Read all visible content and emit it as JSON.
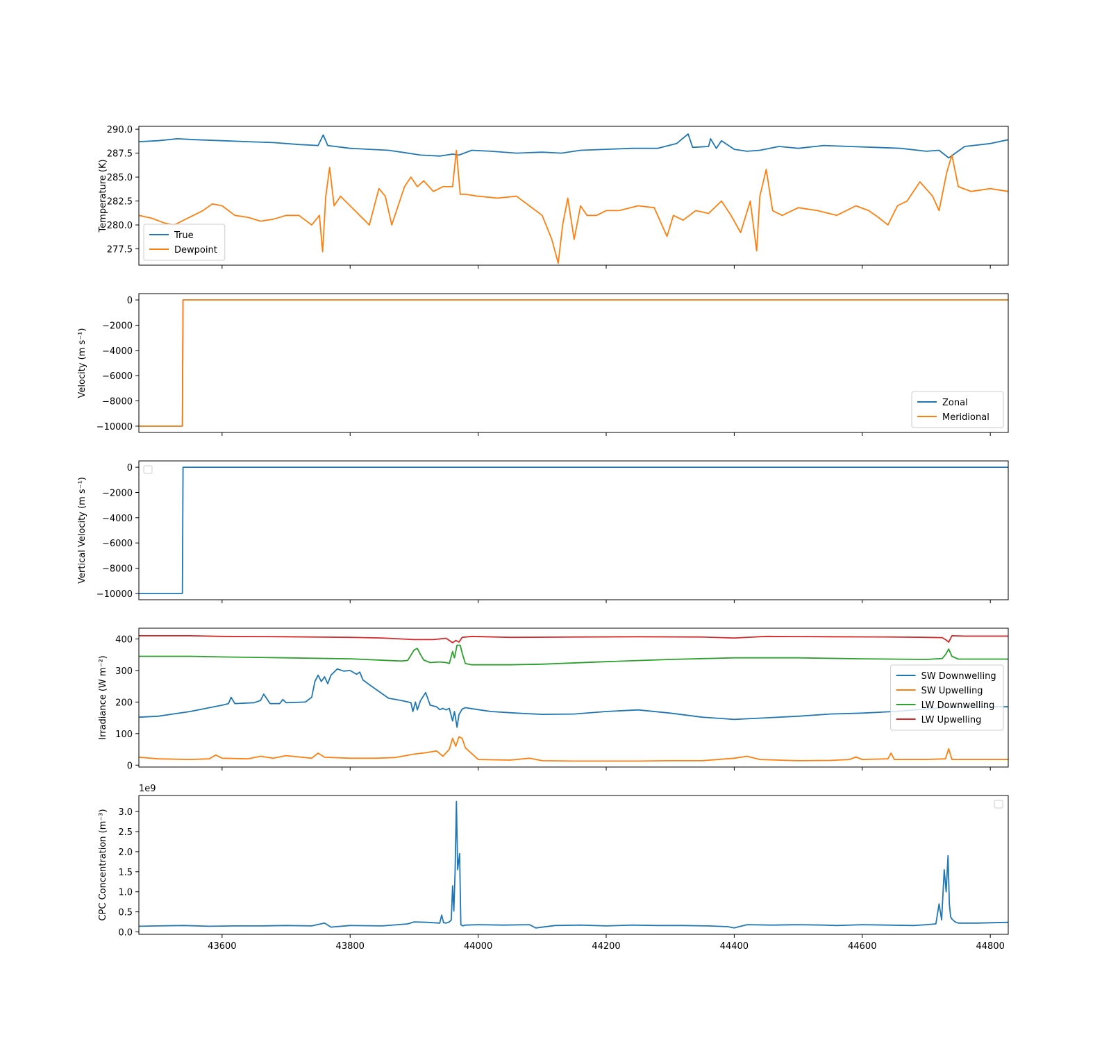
{
  "figure": {
    "shared_xticks": [
      43600,
      43800,
      44000,
      44200,
      44400,
      44600,
      44800
    ],
    "xlim": [
      43470,
      44828
    ]
  },
  "chart_data": [
    {
      "type": "line",
      "ylabel": "Temperature (K)",
      "ylim": [
        275.8,
        290.3
      ],
      "yticks": [
        "277.5",
        "280.0",
        "282.5",
        "285.0",
        "287.5",
        "290.0"
      ],
      "legend": "lower-left",
      "series": [
        {
          "name": "True",
          "color": "#1f77b4",
          "x": [
            43470,
            43500,
            43530,
            43560,
            43600,
            43640,
            43680,
            43720,
            43750,
            43758,
            43765,
            43800,
            43830,
            43860,
            43880,
            43910,
            43940,
            43960,
            43970,
            43990,
            44020,
            44060,
            44100,
            44130,
            44160,
            44200,
            44240,
            44280,
            44310,
            44328,
            44335,
            44360,
            44363,
            44372,
            44380,
            44400,
            44420,
            44440,
            44470,
            44500,
            44540,
            44580,
            44620,
            44660,
            44700,
            44720,
            44735,
            44760,
            44800,
            44828
          ],
          "y": [
            288.7,
            288.8,
            289.0,
            288.9,
            288.8,
            288.7,
            288.6,
            288.4,
            288.3,
            289.4,
            288.3,
            288.0,
            287.9,
            287.8,
            287.6,
            287.3,
            287.2,
            287.4,
            287.3,
            287.8,
            287.7,
            287.5,
            287.6,
            287.5,
            287.8,
            287.9,
            288.0,
            288.0,
            288.5,
            289.5,
            288.1,
            288.2,
            289.0,
            288.0,
            288.8,
            287.9,
            287.7,
            287.8,
            288.2,
            288.0,
            288.3,
            288.2,
            288.1,
            288.0,
            287.7,
            287.8,
            287.0,
            288.2,
            288.5,
            288.9
          ]
        },
        {
          "name": "Dewpoint",
          "color": "#ff7f0e",
          "x": [
            43470,
            43490,
            43510,
            43525,
            43540,
            43555,
            43570,
            43585,
            43600,
            43620,
            43640,
            43660,
            43680,
            43700,
            43720,
            43740,
            43752,
            43757,
            43762,
            43768,
            43775,
            43785,
            43800,
            43815,
            43830,
            43845,
            43855,
            43865,
            43875,
            43885,
            43895,
            43905,
            43915,
            43930,
            43945,
            43960,
            43966,
            43972,
            43980,
            44000,
            44030,
            44060,
            44080,
            44100,
            44115,
            44125,
            44132,
            44140,
            44150,
            44160,
            44170,
            44185,
            44200,
            44220,
            44250,
            44275,
            44295,
            44305,
            44320,
            44340,
            44360,
            44380,
            44395,
            44410,
            44425,
            44435,
            44440,
            44450,
            44460,
            44475,
            44500,
            44530,
            44560,
            44590,
            44610,
            44625,
            44640,
            44655,
            44670,
            44690,
            44710,
            44720,
            44732,
            44740,
            44750,
            44770,
            44800,
            44828
          ],
          "y": [
            281.0,
            280.7,
            280.2,
            280.0,
            280.5,
            281.0,
            281.5,
            282.2,
            282.0,
            281.0,
            280.8,
            280.4,
            280.6,
            281.0,
            281.0,
            280.0,
            281.0,
            277.2,
            283.0,
            286.0,
            282.0,
            283.0,
            282.0,
            281.0,
            280.0,
            283.8,
            283.0,
            280.0,
            282.0,
            284.0,
            285.0,
            284.0,
            284.6,
            283.5,
            284.0,
            284.0,
            287.8,
            283.2,
            283.2,
            283.0,
            282.8,
            283.0,
            282.0,
            281.0,
            278.5,
            276.0,
            280.0,
            282.8,
            278.5,
            282.0,
            281.0,
            281.0,
            281.5,
            281.5,
            282.0,
            281.8,
            278.8,
            281.0,
            280.5,
            281.5,
            281.2,
            282.5,
            281.0,
            279.2,
            282.5,
            277.3,
            283.0,
            285.8,
            281.5,
            281.0,
            281.8,
            281.5,
            281.0,
            282.0,
            281.5,
            280.8,
            280.0,
            282.0,
            282.5,
            284.5,
            283.0,
            281.5,
            285.5,
            287.3,
            284.0,
            283.5,
            283.8,
            283.5
          ]
        }
      ]
    },
    {
      "type": "line",
      "ylabel": "Velocity (m s⁻¹)",
      "ylim": [
        -10500,
        500
      ],
      "yticks": [
        "−10000",
        "−8000",
        "−6000",
        "−4000",
        "−2000",
        "0"
      ],
      "legend": "lower-right",
      "series": [
        {
          "name": "Zonal",
          "color": "#1f77b4",
          "x": [
            43470,
            43538,
            43539,
            44828
          ],
          "y": [
            -10000,
            -10000,
            0,
            0
          ]
        },
        {
          "name": "Meridional",
          "color": "#ff7f0e",
          "x": [
            43470,
            43538,
            43539,
            44828
          ],
          "y": [
            -10000,
            -10000,
            0,
            0
          ]
        }
      ]
    },
    {
      "type": "line",
      "ylabel": "Vertical Velocity (m s⁻¹)",
      "ylim": [
        -10500,
        500
      ],
      "yticks": [
        "−10000",
        "−8000",
        "−6000",
        "−4000",
        "−2000",
        "0"
      ],
      "legend": "upper-left",
      "series": [
        {
          "color": "#1f77b4",
          "x": [
            43470,
            43538,
            43539,
            44828
          ],
          "y": [
            -10000,
            -10000,
            0,
            0
          ]
        }
      ]
    },
    {
      "type": "line",
      "ylabel": "Irradiance (W m⁻²)",
      "ylim": [
        -6,
        434
      ],
      "yticks": [
        "0",
        "100",
        "200",
        "300",
        "400"
      ],
      "legend": "center-right",
      "series": [
        {
          "name": "SW Downwelling",
          "color": "#1f77b4",
          "x": [
            43470,
            43500,
            43550,
            43600,
            43610,
            43614,
            43620,
            43650,
            43660,
            43665,
            43675,
            43690,
            43695,
            43700,
            43730,
            43740,
            43745,
            43750,
            43755,
            43760,
            43765,
            43770,
            43780,
            43790,
            43800,
            43810,
            43815,
            43820,
            43830,
            43860,
            43880,
            43895,
            43898,
            43902,
            43905,
            43910,
            43918,
            43925,
            43935,
            43940,
            43945,
            43950,
            43955,
            43960,
            43963,
            43967,
            43970,
            43975,
            43980,
            44000,
            44020,
            44060,
            44100,
            44150,
            44200,
            44250,
            44300,
            44350,
            44400,
            44450,
            44500,
            44550,
            44600,
            44650,
            44700,
            44750,
            44800,
            44828
          ],
          "y": [
            152,
            155,
            170,
            190,
            195,
            215,
            195,
            198,
            205,
            225,
            195,
            195,
            208,
            198,
            200,
            215,
            265,
            285,
            265,
            280,
            258,
            285,
            305,
            298,
            300,
            288,
            295,
            270,
            255,
            212,
            205,
            198,
            170,
            200,
            175,
            205,
            230,
            190,
            185,
            176,
            180,
            175,
            180,
            140,
            170,
            120,
            160,
            178,
            182,
            176,
            170,
            165,
            161,
            162,
            170,
            175,
            165,
            152,
            145,
            150,
            155,
            162,
            165,
            170,
            178,
            185,
            185,
            185
          ]
        },
        {
          "name": "SW Upwelling",
          "color": "#ff7f0e",
          "x": [
            43470,
            43500,
            43550,
            43580,
            43590,
            43600,
            43640,
            43660,
            43680,
            43700,
            43740,
            43750,
            43760,
            43800,
            43840,
            43870,
            43900,
            43920,
            43935,
            43945,
            43955,
            43960,
            43965,
            43970,
            43975,
            43980,
            44000,
            44050,
            44080,
            44100,
            44150,
            44200,
            44250,
            44300,
            44350,
            44400,
            44420,
            44440,
            44500,
            44550,
            44580,
            44590,
            44600,
            44640,
            44645,
            44650,
            44700,
            44730,
            44735,
            44740,
            44800,
            44828
          ],
          "y": [
            25,
            20,
            18,
            20,
            32,
            22,
            20,
            28,
            22,
            30,
            22,
            38,
            25,
            22,
            22,
            24,
            35,
            40,
            45,
            28,
            50,
            85,
            60,
            90,
            85,
            55,
            18,
            16,
            22,
            14,
            13,
            13,
            13,
            14,
            14,
            22,
            28,
            18,
            14,
            15,
            18,
            26,
            18,
            20,
            38,
            18,
            18,
            20,
            52,
            18,
            18,
            18
          ]
        },
        {
          "name": "LW Downwelling",
          "color": "#2ca02c",
          "x": [
            43470,
            43550,
            43600,
            43700,
            43800,
            43880,
            43890,
            43900,
            43905,
            43910,
            43915,
            43925,
            43940,
            43950,
            43955,
            43960,
            43963,
            43967,
            43972,
            43975,
            43980,
            43990,
            44000,
            44050,
            44100,
            44200,
            44300,
            44400,
            44500,
            44600,
            44700,
            44725,
            44730,
            44735,
            44740,
            44750,
            44828
          ],
          "y": [
            345,
            345,
            343,
            340,
            337,
            330,
            332,
            365,
            370,
            350,
            333,
            325,
            327,
            325,
            322,
            360,
            340,
            380,
            380,
            355,
            322,
            318,
            318,
            318,
            320,
            328,
            335,
            340,
            340,
            337,
            335,
            338,
            350,
            368,
            345,
            336,
            336
          ]
        },
        {
          "name": "LW Upwelling",
          "color": "#d62728",
          "x": [
            43470,
            43550,
            43600,
            43700,
            43800,
            43850,
            43900,
            43930,
            43950,
            43960,
            43965,
            43970,
            43975,
            43990,
            44050,
            44150,
            44250,
            44350,
            44400,
            44450,
            44550,
            44650,
            44700,
            44725,
            44730,
            44735,
            44740,
            44760,
            44828
          ],
          "y": [
            410,
            410,
            408,
            407,
            405,
            403,
            398,
            398,
            402,
            388,
            395,
            390,
            405,
            408,
            405,
            406,
            407,
            406,
            403,
            408,
            407,
            406,
            405,
            404,
            398,
            390,
            410,
            409,
            409
          ]
        }
      ]
    },
    {
      "type": "line",
      "ylabel": "CPC Concentration (m⁻³)",
      "offset_text": "1e9",
      "ylim": [
        -0.06,
        3.4
      ],
      "yticks": [
        "0.0",
        "0.5",
        "1.0",
        "1.5",
        "2.0",
        "2.5",
        "3.0"
      ],
      "legend": "upper-right",
      "series": [
        {
          "color": "#1f77b4",
          "x": [
            43470,
            43500,
            43540,
            43580,
            43620,
            43660,
            43700,
            43740,
            43760,
            43770,
            43800,
            43850,
            43890,
            43900,
            43920,
            43940,
            43943,
            43946,
            43950,
            43955,
            43958,
            43960,
            43962,
            43964,
            43966,
            43968,
            43971,
            43973,
            43976,
            43980,
            44000,
            44040,
            44080,
            44090,
            44120,
            44160,
            44200,
            44240,
            44280,
            44320,
            44360,
            44390,
            44400,
            44420,
            44460,
            44500,
            44540,
            44560,
            44600,
            44640,
            44680,
            44700,
            44715,
            44720,
            44724,
            44728,
            44731,
            44734,
            44736,
            44738,
            44740,
            44745,
            44750,
            44780,
            44828
          ],
          "y": [
            0.14,
            0.15,
            0.16,
            0.14,
            0.15,
            0.15,
            0.16,
            0.15,
            0.22,
            0.12,
            0.16,
            0.15,
            0.2,
            0.25,
            0.24,
            0.22,
            0.42,
            0.23,
            0.22,
            0.25,
            0.3,
            1.15,
            0.52,
            1.5,
            3.25,
            1.55,
            1.95,
            0.18,
            0.15,
            0.17,
            0.18,
            0.17,
            0.18,
            0.1,
            0.16,
            0.17,
            0.15,
            0.17,
            0.16,
            0.16,
            0.15,
            0.13,
            0.1,
            0.18,
            0.17,
            0.18,
            0.17,
            0.16,
            0.18,
            0.17,
            0.16,
            0.18,
            0.2,
            0.7,
            0.3,
            1.55,
            1.0,
            1.9,
            0.7,
            0.38,
            0.32,
            0.25,
            0.22,
            0.22,
            0.24
          ]
        }
      ]
    }
  ]
}
